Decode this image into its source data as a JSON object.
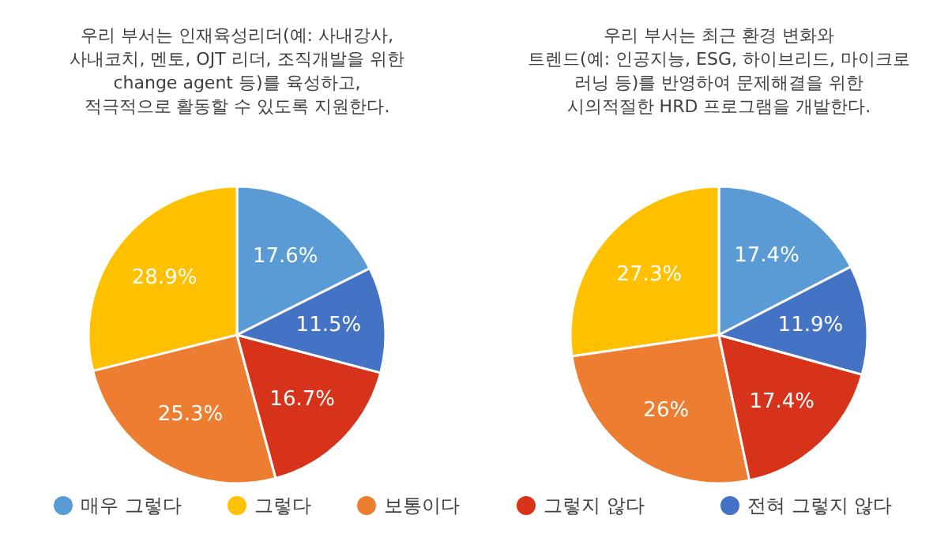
{
  "chart_data": [
    {
      "type": "pie",
      "title": "우리 부서는 인재육성리더(예: 사내강사,\n사내코치, 멘토, OJT 리더, 조직개발을 위한\nchange agent 등)를 육성하고,\n적극적으로 활동할 수 있도록 지원한다.",
      "categories": [
        "매우 그렇다",
        "그렇다",
        "보통이다",
        "그렇지 않다",
        "전혀 그렇지 않다"
      ],
      "values": [
        17.6,
        28.9,
        25.3,
        16.7,
        11.5
      ],
      "value_labels": [
        "17.6%",
        "28.9%",
        "25.3%",
        "16.7%",
        "11.5%"
      ],
      "colors": [
        "#5b9bd5",
        "#ffc000",
        "#ed7d31",
        "#d7321a",
        "#4472c4"
      ],
      "legend": "bottom"
    },
    {
      "type": "pie",
      "title": "우리 부서는 최근 환경 변화와\n트렌드(예: 인공지능, ESG, 하이브리드, 마이크로\n러닝 등)를 반영하여 문제해결을 위한\n시의적절한 HRD 프로그램을 개발한다.",
      "categories": [
        null,
        null,
        null,
        null,
        null
      ],
      "values": [
        17.4,
        27.3,
        26,
        17.4,
        11.9
      ],
      "value_labels": [
        "17.4%",
        "27.3%",
        "26%",
        "17.4%",
        "11.9%"
      ],
      "colors": [
        "#5b9bd5",
        "#ffc000",
        "#ed7d31",
        "#d7321a",
        "#4472c4"
      ]
    }
  ]
}
